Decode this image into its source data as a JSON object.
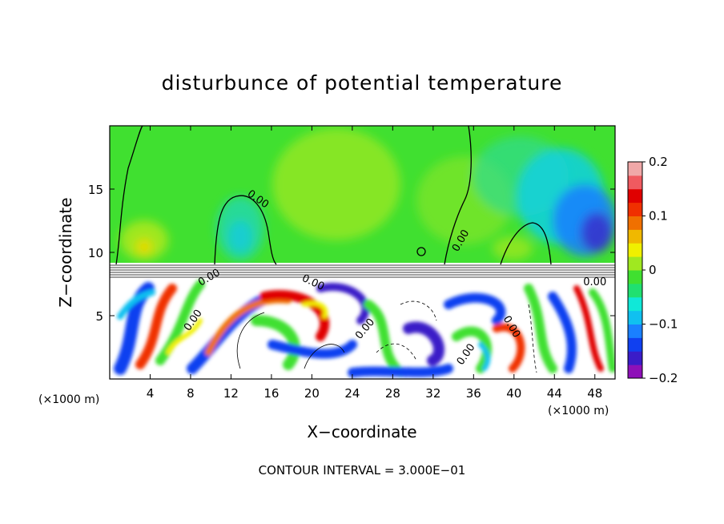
{
  "chart_data": {
    "type": "heatmap",
    "title": "disturbunce of potential temperature",
    "xlabel": "X−coordinate",
    "ylabel": "Z−coordinate",
    "x_unit_label": "(×1000 m)",
    "x_unit_label_right": "(×1000 m)",
    "xlim": [
      0,
      50
    ],
    "ylim": [
      0,
      20
    ],
    "x_ticks": [
      4,
      8,
      12,
      16,
      20,
      24,
      28,
      32,
      36,
      40,
      44,
      48
    ],
    "x_tick_labels": [
      "4",
      "8",
      "12",
      "16",
      "20",
      "24",
      "28",
      "32",
      "36",
      "40",
      "44",
      "48"
    ],
    "y_ticks": [
      5,
      10,
      15
    ],
    "y_tick_labels": [
      "5",
      "10",
      "15"
    ],
    "colorbar": {
      "range": [
        -0.2,
        0.2
      ],
      "ticks": [
        -0.2,
        -0.1,
        0,
        0.1,
        0.2
      ],
      "tick_labels": [
        "−0.2",
        "−0.1",
        "0",
        "0.1",
        "0.2"
      ],
      "colors": [
        "#8e10b8",
        "#3a1cc8",
        "#1040f0",
        "#1a80ff",
        "#10c0f0",
        "#10e8d8",
        "#20e070",
        "#40e030",
        "#a0e820",
        "#f0f000",
        "#f0b800",
        "#f07000",
        "#f03000",
        "#e00000",
        "#f05a60",
        "#f0a8a8"
      ]
    },
    "contour_labels": [
      "0.00",
      "0.00",
      "0.00",
      "0.00",
      "0.00",
      "0.00",
      "0.00",
      "0.00",
      "0.00"
    ],
    "footer_note": "CONTOUR INTERVAL = 3.000E−01"
  }
}
